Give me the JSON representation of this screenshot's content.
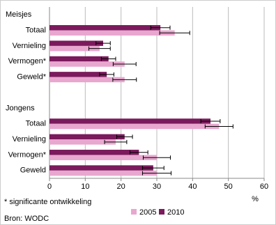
{
  "chart_data": {
    "type": "bar",
    "orientation": "horizontal",
    "categories": [
      "Meisjes",
      "Totaal",
      "Vernieling",
      "Vermogen*",
      "Geweld*",
      null,
      "Jongens",
      "Totaal",
      "Vernieling",
      "Vermogen*",
      "Geweld"
    ],
    "series": [
      {
        "name": "2010",
        "color": "#7b1a5c",
        "values": [
          null,
          31,
          15,
          16.5,
          16,
          null,
          null,
          45,
          21,
          25,
          29
        ],
        "errors": [
          null,
          2.7,
          2,
          2,
          2,
          null,
          null,
          2.7,
          2.2,
          2.5,
          3
        ]
      },
      {
        "name": "2005",
        "color": "#e8a7cf",
        "values": [
          null,
          35,
          14,
          21,
          21,
          null,
          null,
          47.4,
          18.5,
          30,
          30
        ],
        "errors": [
          null,
          4.2,
          3,
          3.2,
          3.3,
          null,
          null,
          3.9,
          3.1,
          3.8,
          4
        ]
      }
    ],
    "xlim": [
      0,
      60
    ],
    "xticks": [
      0,
      10,
      20,
      30,
      40,
      50,
      60
    ],
    "grid": true,
    "x_label": "%",
    "footnote": "* significante ontwikkeling",
    "source": "Bron: WODC",
    "legend_order": [
      "2005",
      "2010"
    ]
  }
}
